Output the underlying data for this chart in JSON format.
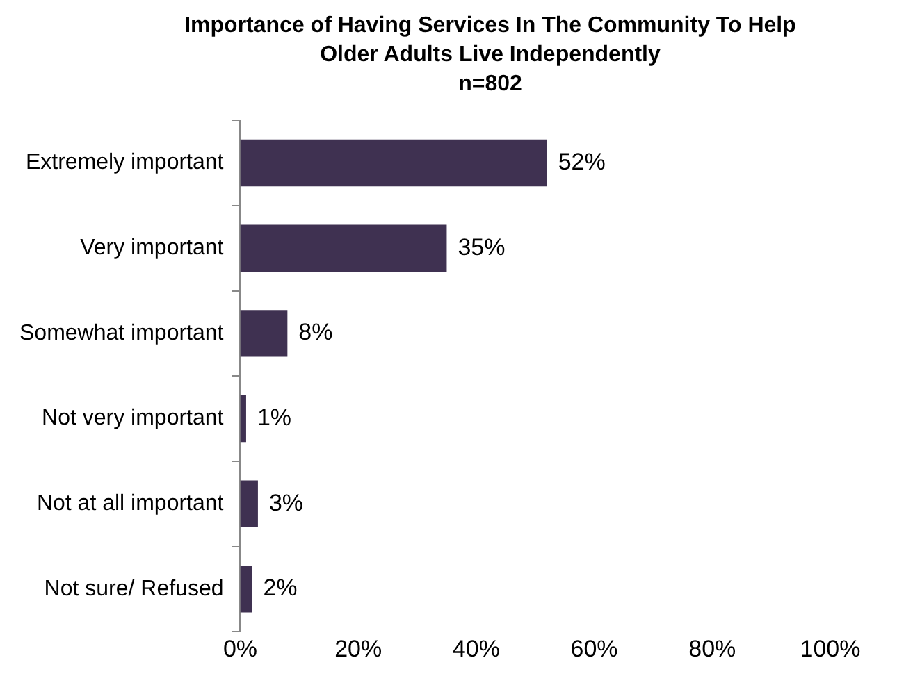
{
  "chart_data": {
    "type": "bar",
    "orientation": "horizontal",
    "title": "Importance of Having Services In The Community To Help Older Adults Live Independently",
    "subtitle": "n=802",
    "categories": [
      "Extremely important",
      "Very important",
      "Somewhat important",
      "Not very important",
      "Not at all important",
      "Not sure/ Refused"
    ],
    "values": [
      52,
      35,
      8,
      1,
      3,
      2
    ],
    "value_labels": [
      "52%",
      "35%",
      "8%",
      "1%",
      "3%",
      "2%"
    ],
    "color": "#3f3151",
    "xlim": [
      0,
      100
    ],
    "xticks": [
      {
        "value": 0,
        "label": "0%"
      },
      {
        "value": 20,
        "label": "20%"
      },
      {
        "value": 40,
        "label": "40%"
      },
      {
        "value": 60,
        "label": "60%"
      },
      {
        "value": 80,
        "label": "80%"
      },
      {
        "value": 100,
        "label": "100%"
      }
    ],
    "grid": false,
    "legend": false
  }
}
